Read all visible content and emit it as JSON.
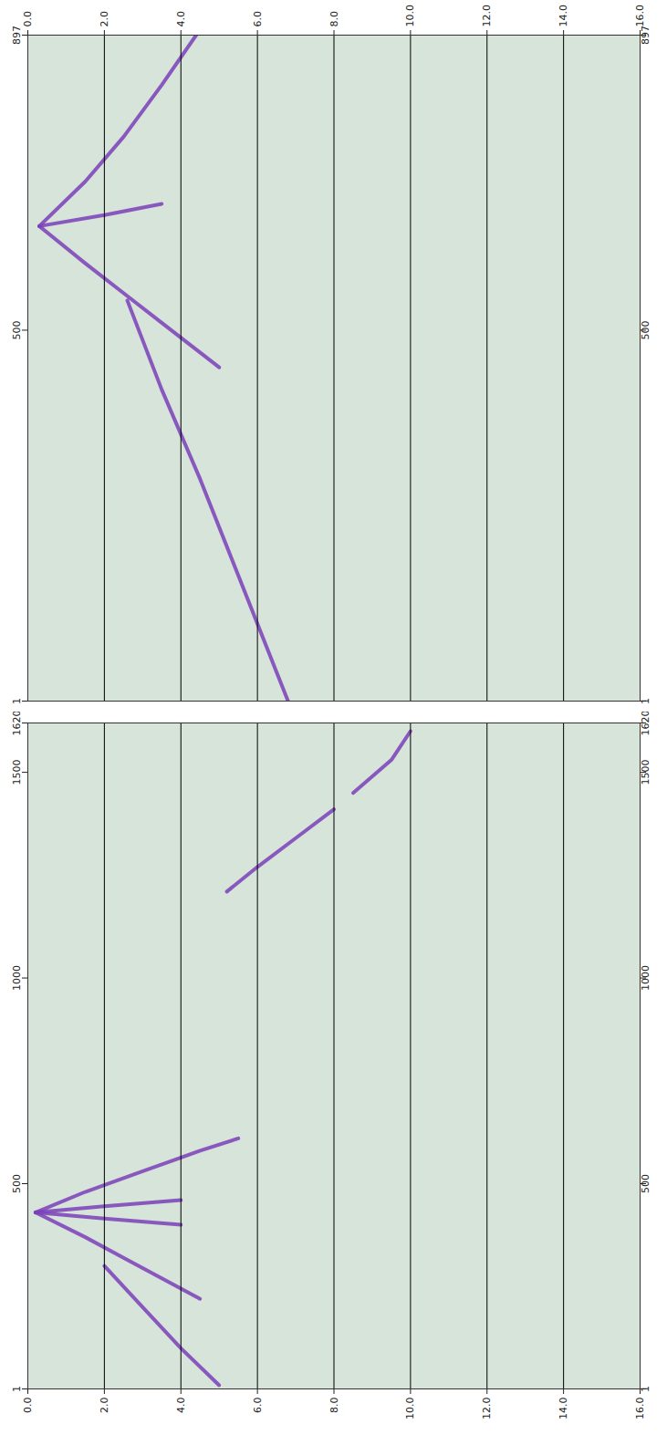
{
  "chart_data": [
    {
      "type": "line",
      "color": "#7b3fb8",
      "grid": true,
      "xlim": [
        0,
        16
      ],
      "xticks": [
        {
          "value": 0,
          "label": "0.0"
        },
        {
          "value": 2,
          "label": "2.0"
        },
        {
          "value": 4,
          "label": "4.0"
        },
        {
          "value": 6,
          "label": "6.0"
        },
        {
          "value": 8,
          "label": "8.0"
        },
        {
          "value": 10,
          "label": "10.0"
        },
        {
          "value": 12,
          "label": "12.0"
        },
        {
          "value": 14,
          "label": "14.0"
        },
        {
          "value": 16,
          "label": "16.0"
        }
      ],
      "ylim": [
        1,
        897
      ],
      "yticks": [
        1,
        500,
        897
      ],
      "series": [
        {
          "x": [
            0.3,
            1.5,
            2.5,
            3.5,
            4.5,
            5.0
          ],
          "values": [
            640,
            590,
            550,
            510,
            470,
            450
          ]
        },
        {
          "x": [
            2.6,
            3.5,
            4.5,
            5.5,
            6.5,
            6.8
          ],
          "values": [
            540,
            420,
            300,
            170,
            40,
            1
          ]
        },
        {
          "x": [
            0.3,
            1.5,
            2.5,
            3.5,
            4.4
          ],
          "values": [
            640,
            700,
            760,
            830,
            897
          ]
        },
        {
          "x": [
            0.3,
            2.0,
            3.5
          ],
          "values": [
            640,
            655,
            670
          ]
        }
      ]
    },
    {
      "type": "line",
      "color": "#7b3fb8",
      "grid": true,
      "xlim": [
        0,
        16
      ],
      "xticks": [
        {
          "value": 0,
          "label": "0.0"
        },
        {
          "value": 2,
          "label": "2.0"
        },
        {
          "value": 4,
          "label": "4.0"
        },
        {
          "value": 6,
          "label": "6.0"
        },
        {
          "value": 8,
          "label": "8.0"
        },
        {
          "value": 10,
          "label": "10.0"
        },
        {
          "value": 12,
          "label": "12.0"
        },
        {
          "value": 14,
          "label": "14.0"
        },
        {
          "value": 16,
          "label": "16.0"
        }
      ],
      "ylim": [
        1,
        1620
      ],
      "yticks": [
        1,
        500,
        1000,
        1500,
        1620
      ],
      "series": [
        {
          "x": [
            0.2,
            1.5,
            2.5,
            3.5,
            4.5
          ],
          "values": [
            430,
            370,
            320,
            270,
            220
          ]
        },
        {
          "x": [
            2.0,
            3.0,
            4.0,
            5.0
          ],
          "values": [
            300,
            200,
            100,
            10
          ]
        },
        {
          "x": [
            0.2,
            1.5,
            3.0,
            4.5,
            5.5
          ],
          "values": [
            430,
            480,
            530,
            580,
            610
          ]
        },
        {
          "x": [
            0.2,
            2.0,
            4.0
          ],
          "values": [
            430,
            445,
            460
          ]
        },
        {
          "x": [
            0.2,
            2.0,
            4.0
          ],
          "values": [
            430,
            415,
            400
          ]
        },
        {
          "x": [
            5.2,
            6.0,
            7.0,
            8.0
          ],
          "values": [
            1210,
            1270,
            1340,
            1410
          ]
        },
        {
          "x": [
            8.5,
            9.5,
            10.0
          ],
          "values": [
            1450,
            1530,
            1600
          ]
        }
      ]
    }
  ]
}
